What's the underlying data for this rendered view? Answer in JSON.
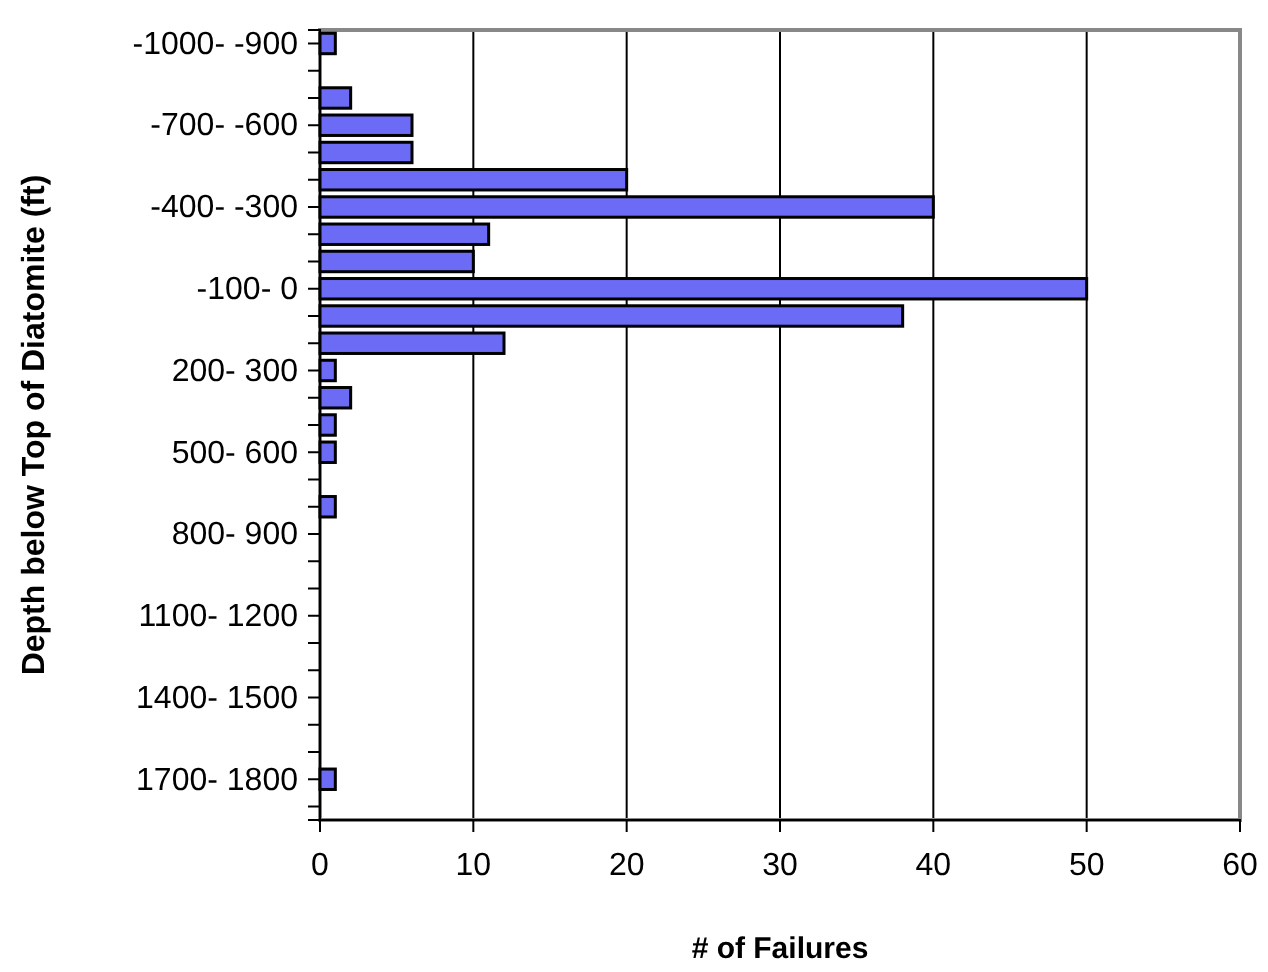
{
  "chart_data": {
    "type": "bar",
    "orientation": "horizontal",
    "xlabel": "# of Failures",
    "ylabel": "Depth below Top of Diatomite (ft)",
    "categories": [
      "-1000- -900",
      null,
      null,
      "-700- -600",
      null,
      null,
      "-400- -300",
      null,
      null,
      "-100- 0",
      null,
      null,
      "200- 300",
      null,
      null,
      "500- 600",
      null,
      null,
      "800- 900",
      null,
      null,
      "1100- 1200",
      null,
      null,
      "1400- 1500",
      null,
      null,
      "1700- 1800",
      null
    ],
    "values": [
      1,
      0,
      2,
      6,
      6,
      20,
      40,
      11,
      10,
      50,
      38,
      12,
      1,
      2,
      1,
      1,
      0,
      1,
      0,
      0,
      0,
      0,
      0,
      0,
      0,
      0,
      0,
      1,
      0
    ],
    "color": "#6b6bf5",
    "xlim": [
      0,
      60
    ],
    "xticks": [
      0,
      10,
      20,
      30,
      40,
      50,
      60
    ],
    "grid": "x"
  }
}
